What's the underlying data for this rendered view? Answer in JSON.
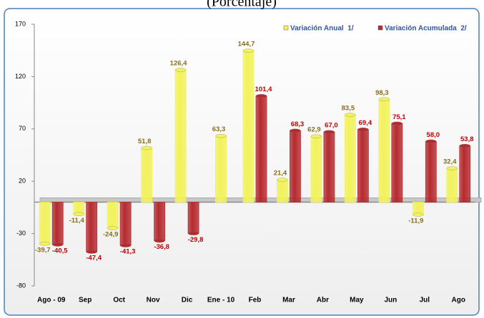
{
  "chart_data": {
    "type": "bar",
    "title": "(Porcentaje)",
    "categories": [
      "Ago - 09",
      "Sep",
      "Oct",
      "Nov",
      "Dic",
      "Ene - 10",
      "Feb",
      "Mar",
      "Abr",
      "May",
      "Jun",
      "Jul",
      "Ago"
    ],
    "series": [
      {
        "name": "Variación Anual  1/",
        "color": "#f2f25a",
        "values": [
          -39.7,
          -11.4,
          -24.9,
          51.8,
          126.4,
          63.3,
          144.7,
          21.4,
          62.9,
          83.5,
          98.3,
          -11.9,
          32.4
        ],
        "value_labels": [
          "-39,7",
          "-11,4",
          "-24,9",
          "51,8",
          "126,4",
          "63,3",
          "144,7",
          "21,4",
          "62,9",
          "83,5",
          "98,3",
          "-11,9",
          "32,4"
        ]
      },
      {
        "name": "Variación Acumulada  2/",
        "color": "#b52a2e",
        "values": [
          -40.5,
          -47.4,
          -41.3,
          -36.8,
          -29.8,
          null,
          101.4,
          68.3,
          67.0,
          69.4,
          75.1,
          58.0,
          53.8
        ],
        "value_labels": [
          "-40,5",
          "-47,4",
          "-41,3",
          "-36,8",
          "-29,8",
          null,
          "101,4",
          "68,3",
          "67,0",
          "69,4",
          "75,1",
          "58,0",
          "53,8"
        ]
      }
    ],
    "ylim": [
      -80,
      170
    ],
    "yticks": [
      -80,
      -30,
      20,
      70,
      120,
      170
    ]
  }
}
